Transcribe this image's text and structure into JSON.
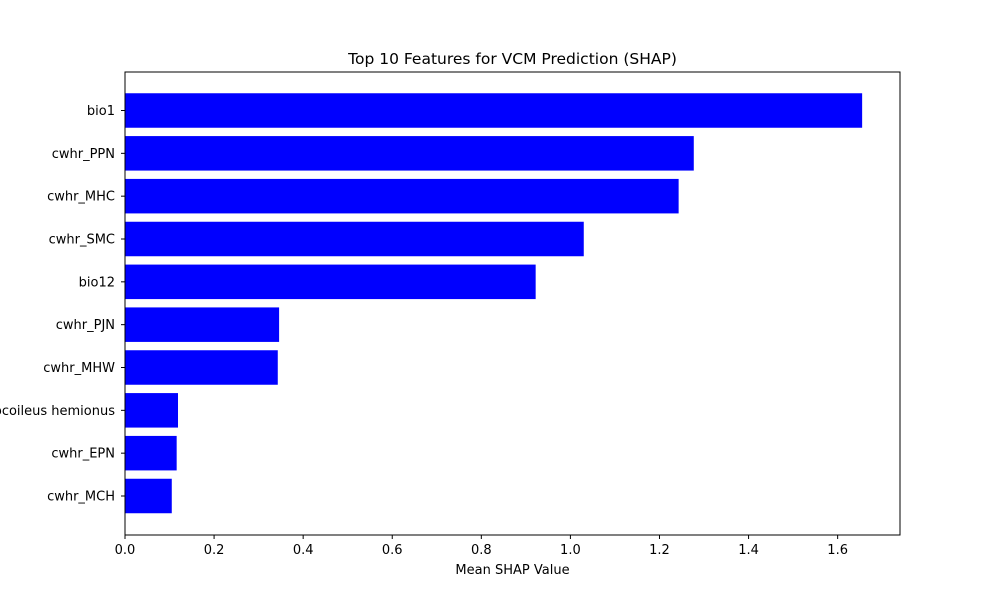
{
  "chart_data": {
    "type": "bar",
    "orientation": "horizontal",
    "title": "Top 10 Features for VCM Prediction (SHAP)",
    "xlabel": "Mean SHAP Value",
    "ylabel": "",
    "xlim": [
      0,
      1.74
    ],
    "xticks": [
      "0.0",
      "0.2",
      "0.4",
      "0.6",
      "0.8",
      "1.0",
      "1.2",
      "1.4",
      "1.6"
    ],
    "categories": [
      "bio1",
      "cwhr_PPN",
      "cwhr_MHC",
      "cwhr_SMC",
      "bio12",
      "cwhr_PJN",
      "cwhr_MHW",
      "Odocoileus hemionus",
      "cwhr_EPN",
      "cwhr_MCH"
    ],
    "values": [
      1.655,
      1.277,
      1.243,
      1.03,
      0.922,
      0.346,
      0.343,
      0.119,
      0.116,
      0.105
    ],
    "bar_color": "#0000ff",
    "grid": false,
    "legend": "none"
  }
}
